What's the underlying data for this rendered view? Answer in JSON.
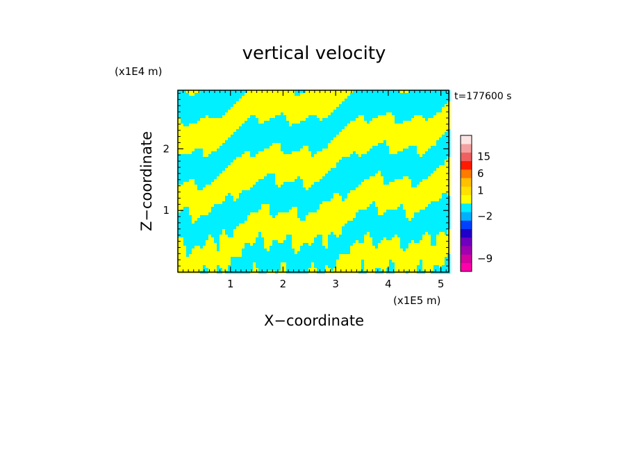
{
  "chart_data": {
    "type": "heatmap",
    "title": "vertical velocity",
    "xlabel": "X−coordinate",
    "ylabel": "Z−coordinate",
    "x_unit": "(x1E5 m)",
    "y_unit": "(x1E4 m)",
    "time_label": "t=177600  s",
    "xlim": [
      0,
      5.15
    ],
    "ylim": [
      0,
      2.95
    ],
    "x_ticks": [
      {
        "value": 1,
        "label": "1"
      },
      {
        "value": 2,
        "label": "2"
      },
      {
        "value": 3,
        "label": "3"
      },
      {
        "value": 4,
        "label": "4"
      },
      {
        "value": 5,
        "label": "5"
      }
    ],
    "y_ticks": [
      {
        "value": 1,
        "label": "1"
      },
      {
        "value": 2,
        "label": "2"
      }
    ],
    "field_colors": {
      "positive": "#ffff00",
      "negative": "#00f0ff"
    },
    "colorbar": {
      "colors_bottom_to_top": [
        "#ff00aa",
        "#d400a0",
        "#a000b0",
        "#7000c0",
        "#2000c8",
        "#0040ff",
        "#00b0ff",
        "#00f0ff",
        "#ffff00",
        "#ffe000",
        "#ffc000",
        "#ff7a00",
        "#ff1a00",
        "#f06060",
        "#f4a0a0",
        "#fce4e4"
      ],
      "tick_labels": [
        {
          "label": "15",
          "segment": 13.5
        },
        {
          "label": "6",
          "segment": 11.5
        },
        {
          "label": "1",
          "segment": 9.5
        },
        {
          "label": "−2",
          "segment": 6.5
        },
        {
          "label": "−9",
          "segment": 1.5
        }
      ]
    }
  }
}
